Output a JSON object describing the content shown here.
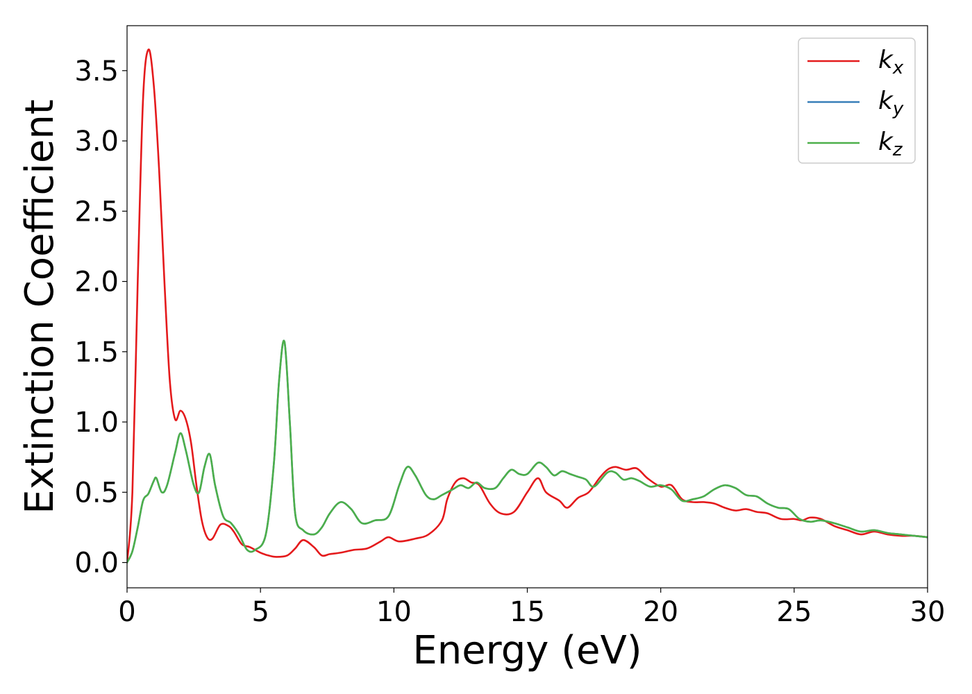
{
  "chart_data": {
    "type": "line",
    "xlabel": "Energy (eV)",
    "ylabel": "Extinction Coefficient",
    "xlim": [
      0,
      30
    ],
    "ylim": [
      -0.18,
      3.82
    ],
    "xticks": [
      0,
      5,
      10,
      15,
      20,
      25,
      30
    ],
    "yticks": [
      0.0,
      0.5,
      1.0,
      1.5,
      2.0,
      2.5,
      3.0,
      3.5
    ],
    "grid": false,
    "legend_position": "top-right",
    "series": [
      {
        "name": "kx",
        "name_base": "k",
        "name_sub": "x",
        "color": "#e41a1c",
        "x": [
          0,
          0.2,
          0.4,
          0.6,
          0.8,
          1.0,
          1.2,
          1.4,
          1.6,
          1.8,
          2.0,
          2.2,
          2.4,
          2.6,
          2.8,
          3.0,
          3.2,
          3.5,
          3.8,
          4.0,
          4.3,
          4.6,
          5.0,
          5.3,
          5.6,
          6.0,
          6.3,
          6.6,
          7.0,
          7.3,
          7.6,
          8.0,
          8.5,
          9.0,
          9.5,
          9.8,
          10.2,
          10.8,
          11.3,
          11.8,
          12.0,
          12.3,
          12.6,
          12.9,
          13.2,
          13.6,
          14.0,
          14.5,
          15.0,
          15.4,
          15.7,
          16.2,
          16.5,
          16.9,
          17.3,
          17.7,
          18.0,
          18.3,
          18.7,
          19.1,
          19.5,
          20.0,
          20.4,
          20.8,
          21.2,
          21.6,
          22.0,
          22.4,
          22.8,
          23.2,
          23.6,
          24.0,
          24.5,
          25.0,
          25.3,
          25.6,
          26.0,
          26.5,
          27.0,
          27.5,
          28.0,
          28.5,
          29.0,
          29.5,
          30.0
        ],
        "y": [
          0.0,
          0.5,
          2.0,
          3.3,
          3.65,
          3.4,
          2.8,
          2.0,
          1.3,
          1.02,
          1.08,
          1.02,
          0.85,
          0.55,
          0.3,
          0.18,
          0.17,
          0.27,
          0.26,
          0.22,
          0.13,
          0.11,
          0.07,
          0.05,
          0.04,
          0.05,
          0.1,
          0.16,
          0.11,
          0.05,
          0.06,
          0.07,
          0.09,
          0.1,
          0.15,
          0.18,
          0.15,
          0.17,
          0.2,
          0.3,
          0.45,
          0.57,
          0.6,
          0.57,
          0.55,
          0.42,
          0.35,
          0.36,
          0.5,
          0.6,
          0.5,
          0.44,
          0.39,
          0.46,
          0.5,
          0.6,
          0.66,
          0.68,
          0.66,
          0.67,
          0.6,
          0.54,
          0.55,
          0.45,
          0.43,
          0.43,
          0.42,
          0.39,
          0.37,
          0.38,
          0.36,
          0.35,
          0.31,
          0.31,
          0.3,
          0.32,
          0.31,
          0.26,
          0.23,
          0.2,
          0.22,
          0.2,
          0.19,
          0.19,
          0.18
        ]
      },
      {
        "name": "ky",
        "name_base": "k",
        "name_sub": "y",
        "color": "#377eb8",
        "x": [
          0,
          0.2,
          0.4,
          0.6,
          0.8,
          1.0,
          1.1,
          1.3,
          1.5,
          1.8,
          2.0,
          2.2,
          2.5,
          2.7,
          2.9,
          3.1,
          3.3,
          3.6,
          3.9,
          4.2,
          4.5,
          4.8,
          5.2,
          5.5,
          5.7,
          5.9,
          6.1,
          6.3,
          6.6,
          7.0,
          7.3,
          7.6,
          8.0,
          8.4,
          8.8,
          9.3,
          9.8,
          10.2,
          10.5,
          10.8,
          11.2,
          11.5,
          11.8,
          12.2,
          12.5,
          12.8,
          13.1,
          13.4,
          13.8,
          14.1,
          14.4,
          14.7,
          15.0,
          15.4,
          15.7,
          16.0,
          16.3,
          16.6,
          16.9,
          17.2,
          17.5,
          18.0,
          18.3,
          18.6,
          18.9,
          19.2,
          19.6,
          20.0,
          20.4,
          20.8,
          21.2,
          21.6,
          22.0,
          22.4,
          22.8,
          23.2,
          23.6,
          24.0,
          24.4,
          24.8,
          25.2,
          25.6,
          26.0,
          26.5,
          27.0,
          27.5,
          28.0,
          28.5,
          29.0,
          29.5,
          30.0
        ],
        "y": [
          0.0,
          0.08,
          0.25,
          0.44,
          0.49,
          0.58,
          0.6,
          0.5,
          0.55,
          0.78,
          0.92,
          0.8,
          0.55,
          0.5,
          0.68,
          0.77,
          0.55,
          0.33,
          0.28,
          0.2,
          0.09,
          0.09,
          0.2,
          0.7,
          1.3,
          1.57,
          1.0,
          0.35,
          0.23,
          0.2,
          0.25,
          0.35,
          0.43,
          0.38,
          0.28,
          0.3,
          0.33,
          0.55,
          0.68,
          0.62,
          0.48,
          0.45,
          0.48,
          0.52,
          0.55,
          0.53,
          0.57,
          0.53,
          0.53,
          0.6,
          0.66,
          0.63,
          0.63,
          0.71,
          0.68,
          0.62,
          0.65,
          0.63,
          0.61,
          0.59,
          0.54,
          0.64,
          0.64,
          0.59,
          0.6,
          0.58,
          0.54,
          0.55,
          0.52,
          0.44,
          0.45,
          0.47,
          0.52,
          0.55,
          0.53,
          0.48,
          0.47,
          0.42,
          0.39,
          0.38,
          0.31,
          0.29,
          0.3,
          0.28,
          0.25,
          0.22,
          0.23,
          0.21,
          0.2,
          0.19,
          0.18
        ]
      },
      {
        "name": "kz",
        "name_base": "k",
        "name_sub": "z",
        "color": "#4daf4a",
        "x": [
          0,
          0.2,
          0.4,
          0.6,
          0.8,
          1.0,
          1.1,
          1.3,
          1.5,
          1.8,
          2.0,
          2.2,
          2.5,
          2.7,
          2.9,
          3.1,
          3.3,
          3.6,
          3.9,
          4.2,
          4.5,
          4.8,
          5.2,
          5.5,
          5.7,
          5.9,
          6.1,
          6.3,
          6.6,
          7.0,
          7.3,
          7.6,
          8.0,
          8.4,
          8.8,
          9.3,
          9.8,
          10.2,
          10.5,
          10.8,
          11.2,
          11.5,
          11.8,
          12.2,
          12.5,
          12.8,
          13.1,
          13.4,
          13.8,
          14.1,
          14.4,
          14.7,
          15.0,
          15.4,
          15.7,
          16.0,
          16.3,
          16.6,
          16.9,
          17.2,
          17.5,
          18.0,
          18.3,
          18.6,
          18.9,
          19.2,
          19.6,
          20.0,
          20.4,
          20.8,
          21.2,
          21.6,
          22.0,
          22.4,
          22.8,
          23.2,
          23.6,
          24.0,
          24.4,
          24.8,
          25.2,
          25.6,
          26.0,
          26.5,
          27.0,
          27.5,
          28.0,
          28.5,
          29.0,
          29.5,
          30.0
        ],
        "y": [
          0.0,
          0.08,
          0.25,
          0.44,
          0.49,
          0.58,
          0.6,
          0.5,
          0.55,
          0.78,
          0.92,
          0.8,
          0.55,
          0.5,
          0.68,
          0.77,
          0.55,
          0.33,
          0.28,
          0.2,
          0.09,
          0.09,
          0.2,
          0.7,
          1.3,
          1.57,
          1.0,
          0.35,
          0.23,
          0.2,
          0.25,
          0.35,
          0.43,
          0.38,
          0.28,
          0.3,
          0.33,
          0.55,
          0.68,
          0.62,
          0.48,
          0.45,
          0.48,
          0.52,
          0.55,
          0.53,
          0.57,
          0.53,
          0.53,
          0.6,
          0.66,
          0.63,
          0.63,
          0.71,
          0.68,
          0.62,
          0.65,
          0.63,
          0.61,
          0.59,
          0.54,
          0.64,
          0.64,
          0.59,
          0.6,
          0.58,
          0.54,
          0.55,
          0.52,
          0.44,
          0.45,
          0.47,
          0.52,
          0.55,
          0.53,
          0.48,
          0.47,
          0.42,
          0.39,
          0.38,
          0.31,
          0.29,
          0.3,
          0.28,
          0.25,
          0.22,
          0.23,
          0.21,
          0.2,
          0.19,
          0.18
        ]
      }
    ]
  }
}
